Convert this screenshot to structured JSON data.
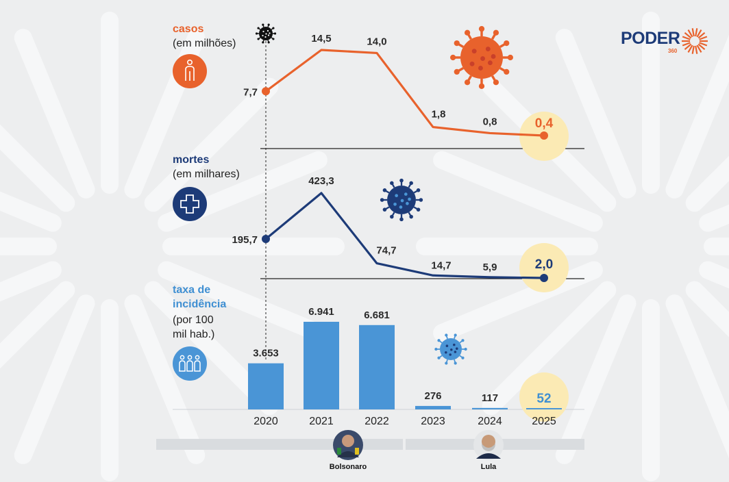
{
  "brand": {
    "name": "PODER",
    "sub": "360"
  },
  "sections": {
    "casos": {
      "title": "casos",
      "unit": "(em milhões)",
      "icon": "person-icon"
    },
    "mortes": {
      "title": "mortes",
      "unit": "(em milhares)",
      "icon": "medical-cross-icon"
    },
    "taxa": {
      "title_lines": [
        "taxa de",
        "incidência"
      ],
      "unit_lines": [
        "(por 100",
        "mil hab.)"
      ],
      "icon": "people-group-icon"
    }
  },
  "presidents": [
    {
      "name": "Bolsonaro",
      "years": [
        "2020",
        "2021",
        "2022"
      ]
    },
    {
      "name": "Lula",
      "years": [
        "2023",
        "2024",
        "2025"
      ]
    }
  ],
  "colors": {
    "casos": "#e8622c",
    "mortes": "#1d3b78",
    "taxa": "#4a95d6",
    "highlight": "#fbeab4",
    "background": "#edeeef"
  },
  "chart_data": [
    {
      "type": "line",
      "x": [
        "2020",
        "2021",
        "2022",
        "2023",
        "2024",
        "2025"
      ],
      "series": [
        {
          "name": "casos",
          "values": [
            7.7,
            14.5,
            14.0,
            1.8,
            0.8,
            0.4
          ],
          "labels": [
            "7,7",
            "14,5",
            "14,0",
            "1,8",
            "0,8",
            "0,4"
          ]
        }
      ],
      "ylabel": "(em milhões)",
      "highlight_last": true
    },
    {
      "type": "line",
      "x": [
        "2020",
        "2021",
        "2022",
        "2023",
        "2024",
        "2025"
      ],
      "series": [
        {
          "name": "mortes",
          "values": [
            195.7,
            423.3,
            74.7,
            14.7,
            5.9,
            2.0
          ],
          "labels": [
            "195,7",
            "423,3",
            "74,7",
            "14,7",
            "5,9",
            "2,0"
          ]
        }
      ],
      "ylabel": "(em milhares)",
      "highlight_last": true
    },
    {
      "type": "bar",
      "categories": [
        "2020",
        "2021",
        "2022",
        "2023",
        "2024",
        "2025"
      ],
      "values": [
        3653,
        6941,
        6681,
        276,
        117,
        52
      ],
      "labels": [
        "3.653",
        "6.941",
        "6.681",
        "276",
        "117",
        "52"
      ],
      "ylabel": "(por 100 mil hab.)",
      "highlight_last": true
    }
  ]
}
